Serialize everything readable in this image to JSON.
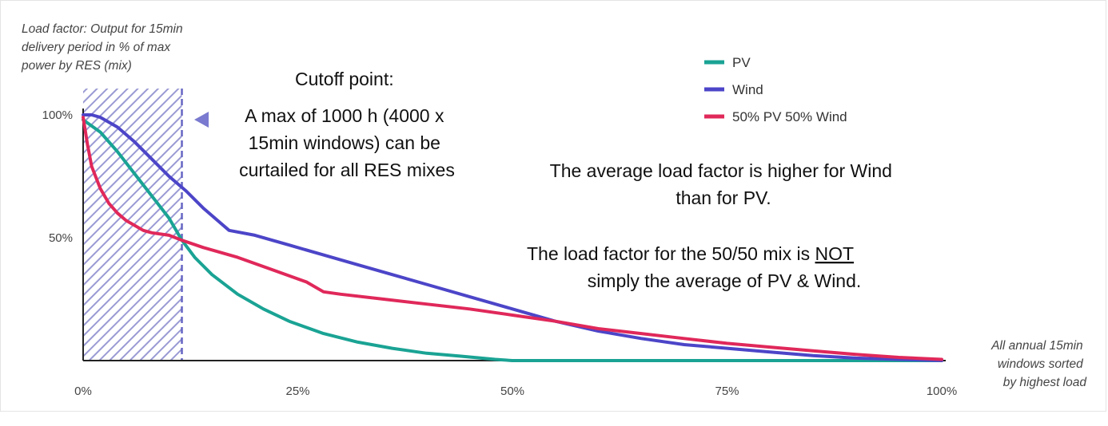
{
  "chart_data": {
    "type": "line",
    "ylabel_lines": [
      "Load factor: Output for 15min",
      "delivery period in % of max",
      "power by RES (mix)"
    ],
    "xlabel_lines": [
      "All annual 15min",
      "windows sorted",
      "by highest load"
    ],
    "x_ticks": [
      {
        "value": 0,
        "label": "0%"
      },
      {
        "value": 25,
        "label": "25%"
      },
      {
        "value": 50,
        "label": "50%"
      },
      {
        "value": 75,
        "label": "75%"
      },
      {
        "value": 100,
        "label": "100%"
      }
    ],
    "y_ticks": [
      {
        "value": 100,
        "label": "100%"
      },
      {
        "value": 50,
        "label": "50%"
      }
    ],
    "xlim": [
      0,
      100
    ],
    "ylim": [
      0,
      100
    ],
    "grid": false,
    "legend_position": "top-right",
    "cutoff_x": 11.5,
    "series": [
      {
        "name": "PV",
        "color": "#1aa394",
        "points": [
          [
            0,
            98
          ],
          [
            2,
            93
          ],
          [
            4,
            85
          ],
          [
            6,
            76
          ],
          [
            8,
            67
          ],
          [
            10,
            58
          ],
          [
            11.5,
            49
          ],
          [
            13,
            42
          ],
          [
            15,
            35
          ],
          [
            18,
            27
          ],
          [
            21,
            21
          ],
          [
            24,
            16
          ],
          [
            28,
            11
          ],
          [
            32,
            7.5
          ],
          [
            36,
            5
          ],
          [
            40,
            3
          ],
          [
            44,
            1.8
          ],
          [
            48,
            0.5
          ],
          [
            50,
            0
          ],
          [
            60,
            0
          ],
          [
            70,
            0
          ],
          [
            80,
            0
          ],
          [
            90,
            0
          ],
          [
            100,
            0
          ]
        ]
      },
      {
        "name": "Wind",
        "color": "#4c45c8",
        "points": [
          [
            0,
            100
          ],
          [
            1,
            100
          ],
          [
            2,
            99
          ],
          [
            4,
            95
          ],
          [
            6,
            89
          ],
          [
            8,
            82
          ],
          [
            10,
            75
          ],
          [
            12,
            69
          ],
          [
            14,
            62
          ],
          [
            16,
            56
          ],
          [
            17,
            53
          ],
          [
            20,
            51
          ],
          [
            24,
            47
          ],
          [
            28,
            43
          ],
          [
            32,
            39
          ],
          [
            36,
            35
          ],
          [
            40,
            31
          ],
          [
            45,
            26
          ],
          [
            50,
            21
          ],
          [
            55,
            16
          ],
          [
            60,
            12
          ],
          [
            65,
            9
          ],
          [
            70,
            6.5
          ],
          [
            75,
            5
          ],
          [
            80,
            3.5
          ],
          [
            85,
            2
          ],
          [
            90,
            1
          ],
          [
            95,
            0.5
          ],
          [
            100,
            0
          ]
        ]
      },
      {
        "name": "50% PV 50% Wind",
        "color": "#e0285a",
        "points": [
          [
            0,
            99
          ],
          [
            0.5,
            88
          ],
          [
            1,
            79
          ],
          [
            2,
            70
          ],
          [
            3,
            64
          ],
          [
            4,
            60
          ],
          [
            5,
            57
          ],
          [
            7,
            53
          ],
          [
            8,
            52
          ],
          [
            10,
            51
          ],
          [
            11.5,
            49
          ],
          [
            14,
            46
          ],
          [
            18,
            42
          ],
          [
            22,
            37
          ],
          [
            26,
            32
          ],
          [
            28,
            28
          ],
          [
            30,
            27
          ],
          [
            35,
            25
          ],
          [
            40,
            23
          ],
          [
            45,
            21
          ],
          [
            50,
            18.5
          ],
          [
            55,
            16
          ],
          [
            60,
            13
          ],
          [
            65,
            11
          ],
          [
            70,
            9
          ],
          [
            75,
            7
          ],
          [
            80,
            5.5
          ],
          [
            85,
            4
          ],
          [
            90,
            2.5
          ],
          [
            95,
            1.3
          ],
          [
            100,
            0.5
          ]
        ]
      }
    ],
    "annotations": {
      "cutoff_title": "Cutoff point:",
      "cutoff_lines": [
        "A max of 1000 h (4000 x",
        "15min windows) can be",
        "curtailed for all RES mixes"
      ],
      "note1_lines": [
        "The average load factor is higher for Wind",
        "than for PV."
      ],
      "note2_before": "The load factor for the 50/50 mix is ",
      "note2_underlined": "NOT",
      "note2_line2": "simply the average of PV & Wind."
    }
  }
}
